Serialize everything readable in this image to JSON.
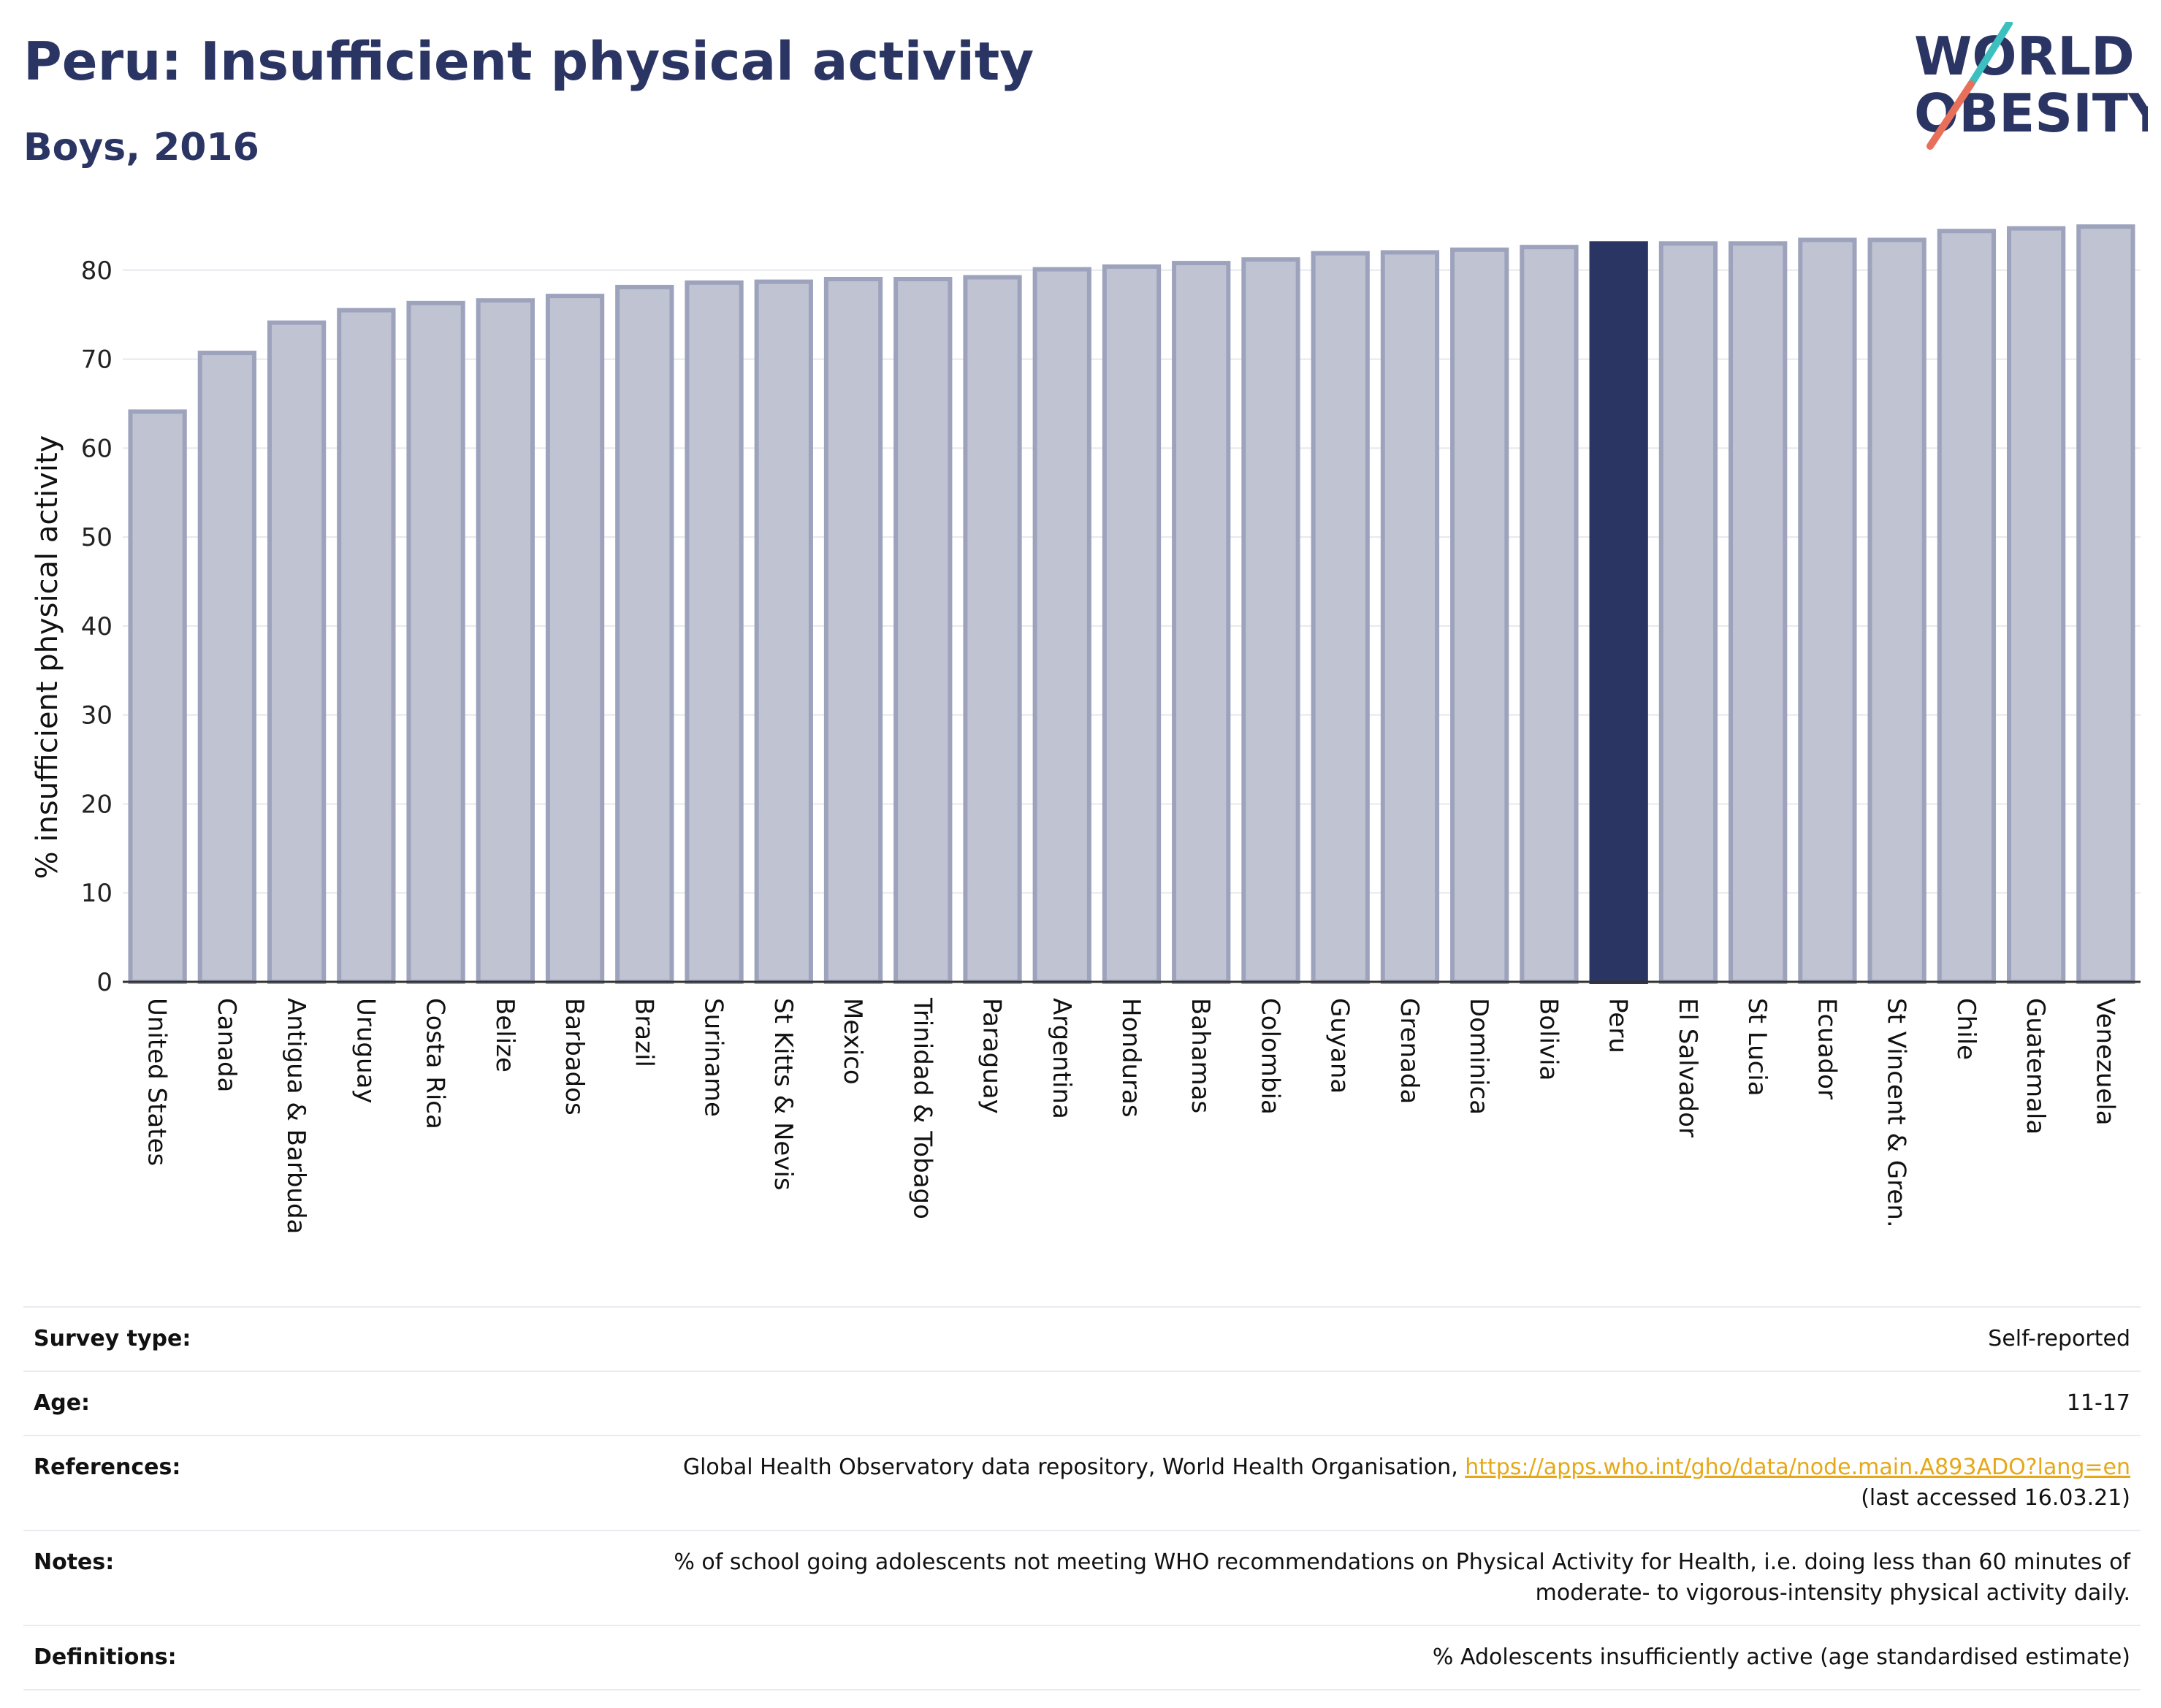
{
  "header": {
    "title": "Peru: Insufficient physical activity",
    "subtitle": "Boys, 2016"
  },
  "logo": {
    "line1": "WORLD",
    "line2": "OBESITY",
    "accent_teal": "#3bbfbf",
    "accent_coral": "#e8705a",
    "text_color": "#2b3564"
  },
  "chart_data": {
    "type": "bar",
    "ylabel": "% insufficient physical activity",
    "xlabel": "",
    "ylim": [
      0,
      84.5
    ],
    "yticks": [
      0,
      10,
      20,
      30,
      40,
      50,
      60,
      70,
      80
    ],
    "grid": true,
    "highlight": "Peru",
    "colors": {
      "bar": "#c0c3d1",
      "bar_border": "#9ea3bd",
      "highlight": "#2b3564"
    },
    "categories": [
      "United States",
      "Canada",
      "Antigua & Barbuda",
      "Uruguay",
      "Costa Rica",
      "Belize",
      "Barbados",
      "Brazil",
      "Suriname",
      "St Kitts & Nevis",
      "Mexico",
      "Trinidad & Tobago",
      "Paraguay",
      "Argentina",
      "Honduras",
      "Bahamas",
      "Colombia",
      "Guyana",
      "Grenada",
      "Dominica",
      "Bolivia",
      "Peru",
      "El Salvador",
      "St Lucia",
      "Ecuador",
      "St Vincent & Gren.",
      "Chile",
      "Guatemala",
      "Venezuela"
    ],
    "values": [
      64.1,
      70.7,
      74.1,
      75.5,
      76.3,
      76.6,
      77.1,
      78.1,
      78.6,
      78.7,
      79.0,
      79.0,
      79.2,
      80.1,
      80.4,
      80.8,
      81.2,
      81.9,
      82.0,
      82.3,
      82.6,
      83.0,
      83.0,
      83.0,
      83.4,
      83.4,
      84.4,
      84.7,
      84.9
    ]
  },
  "info": {
    "survey_type_label": "Survey type:",
    "survey_type_value": "Self-reported",
    "age_label": "Age:",
    "age_value": "11-17",
    "references_label": "References:",
    "references_text": "Global Health Observatory data repository, World Health Organisation, ",
    "references_link": "https://apps.who.int/gho/data/node.main.A893ADO?lang=en",
    "references_accessed": "(last accessed 16.03.21)",
    "notes_label": "Notes:",
    "notes_line1": "% of school going adolescents not meeting WHO recommendations on Physical Activity for Health, i.e. doing less than 60 minutes of",
    "notes_line2": "moderate- to vigorous-intensity physical activity daily.",
    "definitions_label": "Definitions:",
    "definitions_value": "% Adolescents insufficiently active (age standardised estimate)"
  }
}
